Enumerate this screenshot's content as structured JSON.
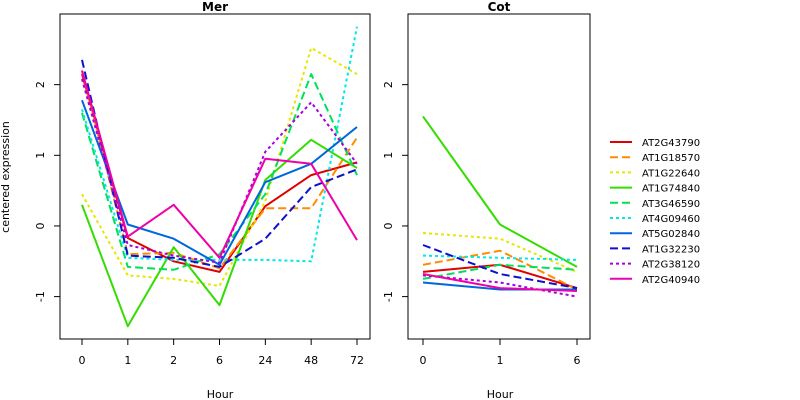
{
  "chart_data": [
    {
      "type": "line",
      "title": "Mer",
      "ylabel": "centered expression",
      "xlabel": "Hour",
      "categories": [
        "0",
        "1",
        "2",
        "6",
        "24",
        "48",
        "72"
      ],
      "ylim": [
        -1.6,
        3.0
      ],
      "yticks": [
        -1,
        0,
        1,
        2
      ],
      "series": [
        {
          "name": "AT2G43790",
          "values": [
            2.15,
            -0.17,
            -0.5,
            -0.65,
            0.28,
            0.72,
            0.9
          ]
        },
        {
          "name": "AT1G18570",
          "values": [
            2.2,
            -0.4,
            -0.38,
            -0.6,
            0.25,
            0.25,
            1.25
          ]
        },
        {
          "name": "AT1G22640",
          "values": [
            0.45,
            -0.7,
            -0.75,
            -0.85,
            0.35,
            2.52,
            2.15
          ]
        },
        {
          "name": "AT1G74840",
          "values": [
            0.3,
            -1.42,
            -0.3,
            -1.12,
            0.65,
            1.22,
            0.82
          ]
        },
        {
          "name": "AT3G46590",
          "values": [
            1.6,
            -0.58,
            -0.62,
            -0.4,
            0.45,
            2.15,
            0.72
          ]
        },
        {
          "name": "AT4G09460",
          "values": [
            1.65,
            -0.45,
            -0.48,
            -0.48,
            -0.48,
            -0.5,
            2.82
          ]
        },
        {
          "name": "AT5G02840",
          "values": [
            1.78,
            0.02,
            -0.18,
            -0.55,
            0.62,
            0.88,
            1.4
          ]
        },
        {
          "name": "AT1G32230",
          "values": [
            2.35,
            -0.42,
            -0.45,
            -0.58,
            -0.18,
            0.55,
            0.8
          ]
        },
        {
          "name": "AT2G38120",
          "values": [
            2.08,
            -0.27,
            -0.42,
            -0.52,
            1.05,
            1.75,
            0.88
          ]
        },
        {
          "name": "AT2G40940",
          "values": [
            2.2,
            -0.15,
            0.3,
            -0.45,
            0.95,
            0.88,
            -0.2
          ]
        }
      ]
    },
    {
      "type": "line",
      "title": "Cot",
      "xlabel": "Hour",
      "categories": [
        "0",
        "1",
        "6"
      ],
      "ylim": [
        -1.6,
        3.0
      ],
      "yticks": [
        -1,
        0,
        1,
        2
      ],
      "series": [
        {
          "name": "AT2G43790",
          "values": [
            -0.65,
            -0.55,
            -0.88
          ]
        },
        {
          "name": "AT1G18570",
          "values": [
            -0.55,
            -0.35,
            -0.9
          ]
        },
        {
          "name": "AT1G22640",
          "values": [
            -0.1,
            -0.18,
            -0.65
          ]
        },
        {
          "name": "AT1G74840",
          "values": [
            1.55,
            0.02,
            -0.58
          ]
        },
        {
          "name": "AT3G46590",
          "values": [
            -0.75,
            -0.55,
            -0.62
          ]
        },
        {
          "name": "AT4G09460",
          "values": [
            -0.42,
            -0.45,
            -0.48
          ]
        },
        {
          "name": "AT5G02840",
          "values": [
            -0.8,
            -0.9,
            -0.9
          ]
        },
        {
          "name": "AT1G32230",
          "values": [
            -0.27,
            -0.68,
            -0.88
          ]
        },
        {
          "name": "AT2G38120",
          "values": [
            -0.7,
            -0.8,
            -1.0
          ]
        },
        {
          "name": "AT2G40940",
          "values": [
            -0.68,
            -0.88,
            -0.92
          ]
        }
      ]
    }
  ],
  "legend": {
    "placement": "right",
    "items": [
      {
        "label": "AT2G43790",
        "color": "#e00000",
        "dash": "solid"
      },
      {
        "label": "AT1G18570",
        "color": "#ff8c00",
        "dash": "dashed"
      },
      {
        "label": "AT1G22640",
        "color": "#e6e600",
        "dash": "dotted"
      },
      {
        "label": "AT1G74840",
        "color": "#33dd00",
        "dash": "solid"
      },
      {
        "label": "AT3G46590",
        "color": "#00e05a",
        "dash": "dashed"
      },
      {
        "label": "AT4G09460",
        "color": "#00e8e8",
        "dash": "dotted"
      },
      {
        "label": "AT5G02840",
        "color": "#0066dd",
        "dash": "solid"
      },
      {
        "label": "AT1G32230",
        "color": "#1010cc",
        "dash": "dashed"
      },
      {
        "label": "AT2G38120",
        "color": "#aa00dd",
        "dash": "dotted"
      },
      {
        "label": "AT2G40940",
        "color": "#ee00aa",
        "dash": "solid"
      }
    ]
  }
}
